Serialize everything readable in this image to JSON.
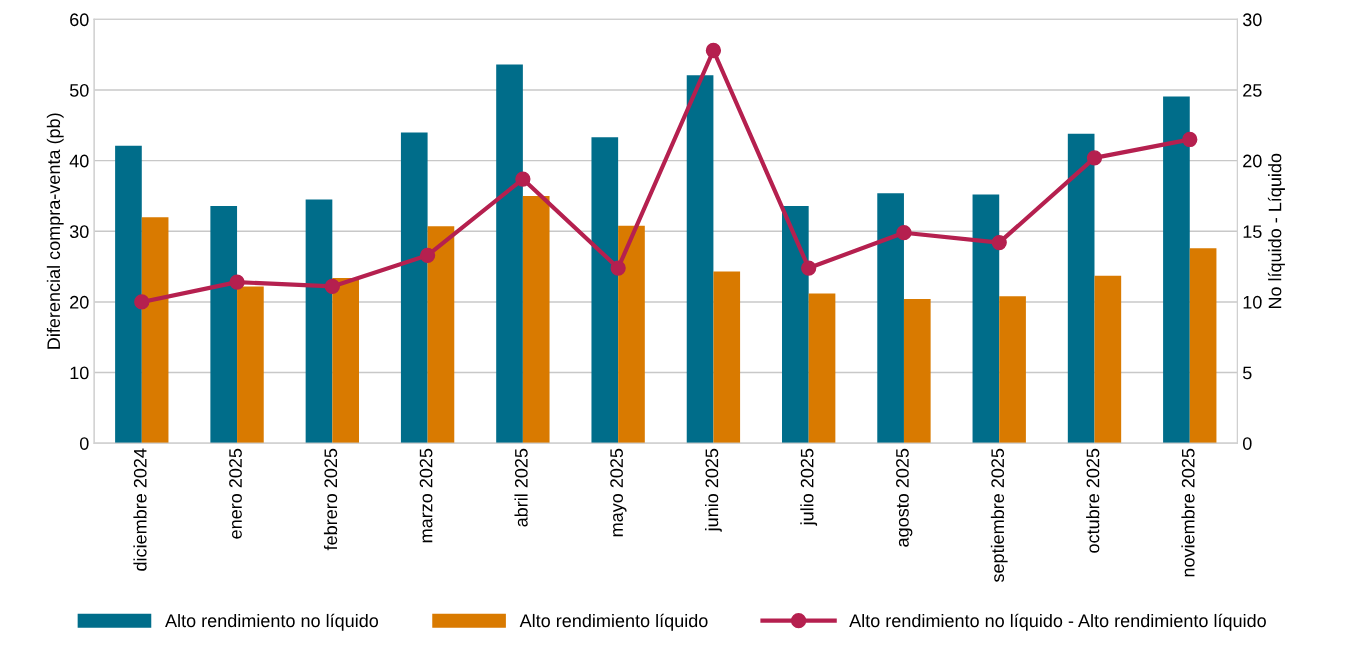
{
  "chart_data": {
    "type": "bar",
    "ylabel": "Diferencial compra-venta (pb)",
    "y2label": "No líquido - Líquido",
    "categories": [
      "diciembre 2024",
      "enero 2025",
      "febrero 2025",
      "marzo 2025",
      "abril 2025",
      "mayo 2025",
      "junio 2025",
      "julio 2025",
      "agosto 2025",
      "septiembre 2025",
      "octubre 2025",
      "noviembre 2025"
    ],
    "series": [
      {
        "name": "Alto rendimiento no líquido",
        "color": "#006d8a",
        "values": [
          42.1,
          33.6,
          34.5,
          44.0,
          53.6,
          43.3,
          52.1,
          33.6,
          35.4,
          35.2,
          43.8,
          49.1
        ]
      },
      {
        "name": "Alto rendimiento líquido",
        "color": "#d97a00",
        "values": [
          32.0,
          22.2,
          23.4,
          30.7,
          35.0,
          30.8,
          24.3,
          21.2,
          20.4,
          20.8,
          23.7,
          27.6
        ]
      },
      {
        "name": "Alto rendimiento no líquido - Alto rendimiento líquido",
        "type": "line",
        "axis": "y2",
        "marker": "circle",
        "color": "#b5204f",
        "values": [
          10.0,
          11.4,
          11.1,
          13.3,
          18.7,
          12.4,
          27.8,
          12.4,
          14.9,
          14.2,
          20.2,
          21.5
        ]
      }
    ],
    "ylim": [
      0,
      60
    ],
    "yticks": [
      0,
      10,
      20,
      30,
      40,
      50,
      60
    ],
    "y2lim": [
      0,
      30
    ],
    "y2ticks": [
      0,
      5,
      10,
      15,
      20,
      25,
      30
    ],
    "grid": "y",
    "legend": "bottom"
  }
}
